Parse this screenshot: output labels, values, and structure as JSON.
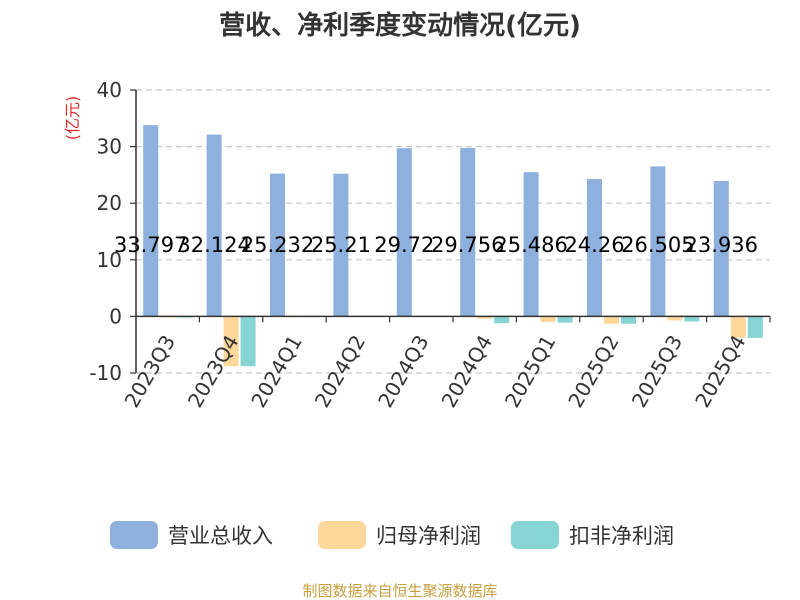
{
  "chart_data": {
    "type": "bar",
    "title": "营收、净利季度变动情况(亿元)",
    "ylabel": "(亿元)",
    "xlabel": "",
    "ylim": [
      -10,
      40
    ],
    "yticks": [
      -10,
      0,
      10,
      20,
      30,
      40
    ],
    "grid": true,
    "legend": "bottom",
    "categories": [
      "2023Q3",
      "2023Q4",
      "2024Q1",
      "2024Q2",
      "2024Q3",
      "2024Q4",
      "2025Q1",
      "2025Q2",
      "2025Q3",
      "2025Q4"
    ],
    "series": [
      {
        "name": "营业总收入",
        "color": "#8eb0dc",
        "values": [
          33.797,
          32.124,
          25.232,
          25.21,
          29.72,
          29.756,
          25.486,
          24.26,
          26.505,
          23.936
        ],
        "labels": [
          "33.797",
          "32.124",
          "25.232",
          "25.21",
          "29.72",
          "29.756",
          "25.486",
          "24.26",
          "26.505",
          "23.936"
        ]
      },
      {
        "name": "归母净利润",
        "color": "#fdd89a",
        "values": [
          -0.2,
          -8.8,
          -0.15,
          -0.1,
          -0.1,
          -0.4,
          -1.0,
          -1.3,
          -0.7,
          -3.8
        ]
      },
      {
        "name": "扣非净利润",
        "color": "#86d4d4",
        "values": [
          -0.2,
          -8.8,
          -0.15,
          -0.1,
          -0.1,
          -1.2,
          -1.1,
          -1.3,
          -0.9,
          -3.8
        ]
      }
    ],
    "source": "制图数据来自恒生聚源数据库"
  }
}
